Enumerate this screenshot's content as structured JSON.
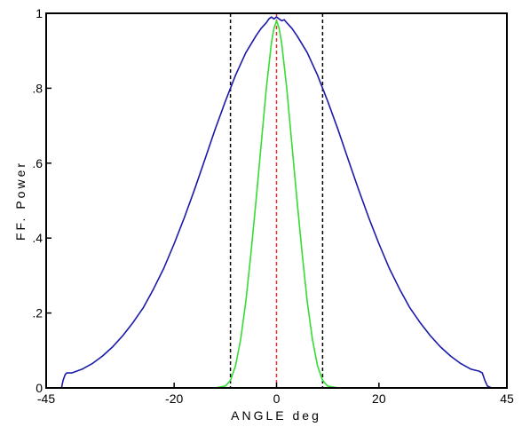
{
  "chart_data": {
    "type": "line",
    "xlabel": "ANGLE deg",
    "ylabel": "FF. Power",
    "xlim": [
      -45,
      45
    ],
    "ylim": [
      0,
      1
    ],
    "xticks": [
      {
        "value": -45,
        "label": "-45"
      },
      {
        "value": -20,
        "label": "-20"
      },
      {
        "value": 0,
        "label": "0"
      },
      {
        "value": 20,
        "label": "20"
      },
      {
        "value": 45,
        "label": "45"
      }
    ],
    "yticks": [
      {
        "value": 0,
        "label": "0"
      },
      {
        "value": 0.2,
        "label": ".2"
      },
      {
        "value": 0.4,
        "label": ".4"
      },
      {
        "value": 0.6,
        "label": ".6"
      },
      {
        "value": 0.8,
        "label": ".8"
      },
      {
        "value": 1,
        "label": "1"
      }
    ],
    "series": [
      {
        "color": "#1a1aa8",
        "x": [
          -42,
          -41.7,
          -41.3,
          -41,
          -40,
          -38,
          -36,
          -34,
          -32,
          -30,
          -28,
          -26,
          -24,
          -22,
          -20,
          -18,
          -16,
          -14,
          -12,
          -10,
          -8,
          -6,
          -4,
          -3,
          -2,
          -1.5,
          -1,
          -0.5,
          0,
          0.5,
          1,
          1.5,
          2,
          3,
          4,
          6,
          8,
          10,
          12,
          14,
          16,
          18,
          20,
          22,
          24,
          26,
          28,
          30,
          32,
          34,
          36,
          38,
          39.5,
          40.2,
          40.7,
          41.2,
          42
        ],
        "y": [
          0,
          0.02,
          0.035,
          0.04,
          0.04,
          0.05,
          0.065,
          0.085,
          0.11,
          0.14,
          0.175,
          0.215,
          0.265,
          0.32,
          0.385,
          0.455,
          0.53,
          0.61,
          0.69,
          0.765,
          0.835,
          0.895,
          0.94,
          0.96,
          0.975,
          0.985,
          0.99,
          0.985,
          0.99,
          0.985,
          0.98,
          0.983,
          0.975,
          0.96,
          0.94,
          0.895,
          0.835,
          0.765,
          0.69,
          0.61,
          0.53,
          0.455,
          0.385,
          0.32,
          0.265,
          0.215,
          0.175,
          0.14,
          0.11,
          0.085,
          0.065,
          0.05,
          0.045,
          0.04,
          0.02,
          0.005,
          0
        ]
      },
      {
        "color": "#33dd33",
        "x": [
          -18,
          -12,
          -10,
          -9,
          -8,
          -7,
          -6,
          -5,
          -4,
          -3,
          -2,
          -1,
          -0.5,
          0,
          0.5,
          1,
          2,
          3,
          4,
          5,
          6,
          7,
          8,
          9,
          10,
          12,
          18
        ],
        "y": [
          0,
          0,
          0.005,
          0.02,
          0.06,
          0.13,
          0.23,
          0.36,
          0.5,
          0.65,
          0.8,
          0.92,
          0.96,
          0.98,
          0.96,
          0.92,
          0.8,
          0.65,
          0.5,
          0.36,
          0.23,
          0.13,
          0.06,
          0.02,
          0.005,
          0,
          0
        ]
      }
    ],
    "vlines": [
      {
        "x": -9,
        "color": "#000000",
        "style": "dashed"
      },
      {
        "x": 0,
        "color": "#e03030",
        "style": "dashed"
      },
      {
        "x": 9,
        "color": "#000000",
        "style": "dashed"
      }
    ]
  }
}
